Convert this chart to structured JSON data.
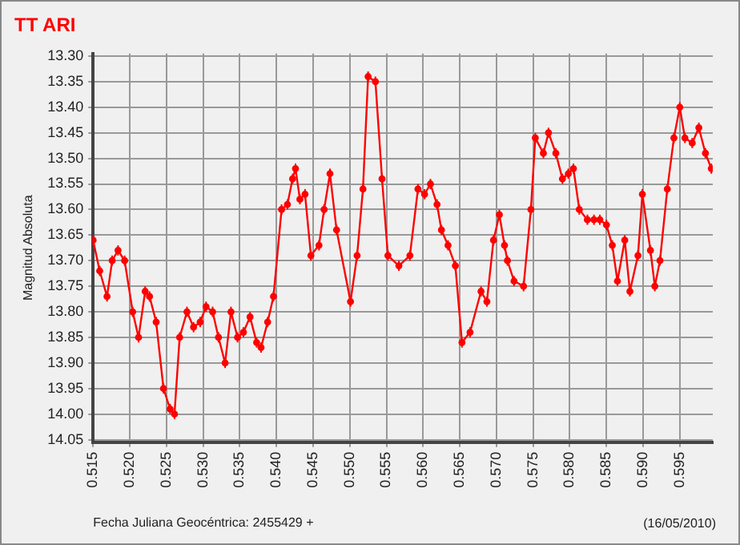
{
  "chart_data": {
    "type": "line",
    "title": "TT ARI",
    "xlabel": "Fecha Juliana Geocéntrica: 2455429 +",
    "ylabel": "Magnitud Absoluta",
    "annotations": [
      "(16/05/2010)"
    ],
    "xlim": [
      0.515,
      0.5995
    ],
    "xticks": [
      {
        "value": 0.515,
        "label": "0.515"
      },
      {
        "value": 0.52,
        "label": "0.520"
      },
      {
        "value": 0.525,
        "label": "0.525"
      },
      {
        "value": 0.53,
        "label": "0.530"
      },
      {
        "value": 0.535,
        "label": "0.535"
      },
      {
        "value": 0.54,
        "label": "0.540"
      },
      {
        "value": 0.545,
        "label": "0.545"
      },
      {
        "value": 0.55,
        "label": "0.550"
      },
      {
        "value": 0.555,
        "label": "0.555"
      },
      {
        "value": 0.56,
        "label": "0.560"
      },
      {
        "value": 0.565,
        "label": "0.565"
      },
      {
        "value": 0.57,
        "label": "0.570"
      },
      {
        "value": 0.575,
        "label": "0.575"
      },
      {
        "value": 0.58,
        "label": "0.580"
      },
      {
        "value": 0.585,
        "label": "0.585"
      },
      {
        "value": 0.59,
        "label": "0.590"
      },
      {
        "value": 0.595,
        "label": "0.595"
      }
    ],
    "ylim": [
      14.055,
      13.295
    ],
    "yticks": [
      {
        "value": 13.3,
        "label": "13.30"
      },
      {
        "value": 13.35,
        "label": "13.35"
      },
      {
        "value": 13.4,
        "label": "13.40"
      },
      {
        "value": 13.45,
        "label": "13.45"
      },
      {
        "value": 13.5,
        "label": "13.50"
      },
      {
        "value": 13.55,
        "label": "13.55"
      },
      {
        "value": 13.6,
        "label": "13.60"
      },
      {
        "value": 13.65,
        "label": "13.65"
      },
      {
        "value": 13.7,
        "label": "13.70"
      },
      {
        "value": 13.75,
        "label": "13.75"
      },
      {
        "value": 13.8,
        "label": "13.80"
      },
      {
        "value": 13.85,
        "label": "13.85"
      },
      {
        "value": 13.9,
        "label": "13.90"
      },
      {
        "value": 13.95,
        "label": "13.95"
      },
      {
        "value": 14.0,
        "label": "14.00"
      },
      {
        "value": 14.05,
        "label": "14.05"
      }
    ],
    "grid": true,
    "marker": "circle",
    "line_style": "solid",
    "legend": false,
    "series": [
      {
        "color": "#ff0000",
        "x": [
          0.515,
          0.5159,
          0.5169,
          0.5176,
          0.5184,
          0.5193,
          0.5204,
          0.5212,
          0.5221,
          0.5227,
          0.5236,
          0.5246,
          0.5255,
          0.5261,
          0.5268,
          0.5278,
          0.5287,
          0.5296,
          0.5304,
          0.5313,
          0.5321,
          0.533,
          0.5338,
          0.5347,
          0.5355,
          0.5364,
          0.5373,
          0.5379,
          0.5388,
          0.5396,
          0.5407,
          0.5415,
          0.5422,
          0.5426,
          0.5432,
          0.5439,
          0.5447,
          0.5458,
          0.5465,
          0.5473,
          0.5482,
          0.5501,
          0.551,
          0.5518,
          0.5525,
          0.5535,
          0.5544,
          0.5552,
          0.5567,
          0.5582,
          0.5593,
          0.5602,
          0.561,
          0.5619,
          0.5625,
          0.5634,
          0.5644,
          0.5653,
          0.5664,
          0.5679,
          0.5687,
          0.5696,
          0.5704,
          0.5711,
          0.5715,
          0.5724,
          0.5737,
          0.5747,
          0.5753,
          0.5764,
          0.5771,
          0.5781,
          0.579,
          0.5798,
          0.5805,
          0.5813,
          0.5824,
          0.5833,
          0.5841,
          0.585,
          0.5858,
          0.5865,
          0.5875,
          0.5882,
          0.5893,
          0.5899,
          0.591,
          0.5916,
          0.5923,
          0.5933,
          0.5942,
          0.595,
          0.5957,
          0.5967,
          0.5976,
          0.5985,
          0.5993
        ],
        "values": [
          13.66,
          13.72,
          13.77,
          13.7,
          13.68,
          13.7,
          13.8,
          13.85,
          13.76,
          13.77,
          13.82,
          13.95,
          13.99,
          14.0,
          13.85,
          13.8,
          13.83,
          13.82,
          13.79,
          13.8,
          13.85,
          13.9,
          13.8,
          13.85,
          13.84,
          13.81,
          13.86,
          13.87,
          13.82,
          13.77,
          13.6,
          13.59,
          13.54,
          13.52,
          13.58,
          13.57,
          13.69,
          13.67,
          13.6,
          13.53,
          13.64,
          13.78,
          13.69,
          13.56,
          13.34,
          13.35,
          13.54,
          13.69,
          13.71,
          13.69,
          13.56,
          13.57,
          13.55,
          13.59,
          13.64,
          13.67,
          13.71,
          13.86,
          13.84,
          13.76,
          13.78,
          13.66,
          13.61,
          13.67,
          13.7,
          13.74,
          13.75,
          13.6,
          13.46,
          13.49,
          13.45,
          13.49,
          13.54,
          13.53,
          13.52,
          13.6,
          13.62,
          13.62,
          13.62,
          13.63,
          13.67,
          13.74,
          13.66,
          13.76,
          13.69,
          13.57,
          13.68,
          13.75,
          13.7,
          13.56,
          13.46,
          13.4,
          13.46,
          13.47,
          13.44,
          13.49,
          13.52
        ],
        "errors": [
          0.01,
          0.01,
          0.01,
          0.01,
          0.01,
          0.01,
          0.01,
          0.01,
          0.01,
          0.01,
          0.01,
          0.01,
          0.01,
          0.01,
          0.01,
          0.01,
          0.01,
          0.01,
          0.01,
          0.01,
          0.01,
          0.01,
          0.01,
          0.01,
          0.01,
          0.01,
          0.01,
          0.01,
          0.01,
          0.01,
          0.01,
          0.01,
          0.01,
          0.01,
          0.01,
          0.01,
          0.01,
          0.01,
          0.01,
          0.01,
          0.01,
          0.01,
          0.01,
          0.01,
          0.01,
          0.01,
          0.01,
          0.01,
          0.01,
          0.01,
          0.01,
          0.01,
          0.01,
          0.01,
          0.01,
          0.01,
          0.01,
          0.01,
          0.01,
          0.01,
          0.01,
          0.01,
          0.01,
          0.01,
          0.01,
          0.01,
          0.01,
          0.01,
          0.01,
          0.01,
          0.01,
          0.01,
          0.01,
          0.01,
          0.01,
          0.01,
          0.01,
          0.01,
          0.01,
          0.01,
          0.01,
          0.01,
          0.01,
          0.01,
          0.01,
          0.01,
          0.01,
          0.01,
          0.01,
          0.01,
          0.01,
          0.01,
          0.01,
          0.01,
          0.01,
          0.01,
          0.01
        ]
      }
    ]
  }
}
